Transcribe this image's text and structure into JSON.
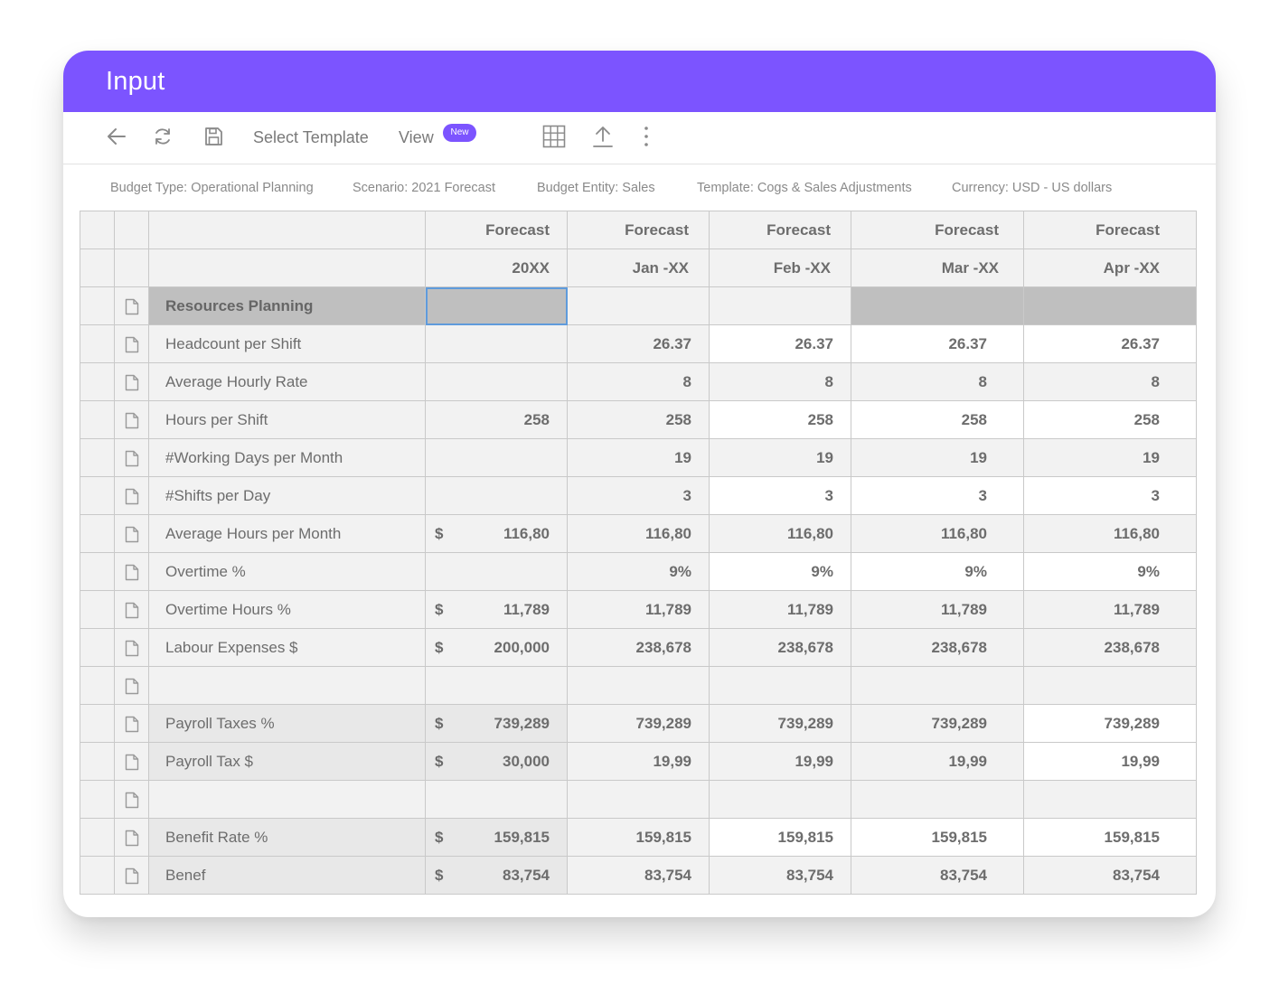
{
  "header": {
    "title": "Input"
  },
  "toolbar": {
    "back_icon": "arrow-left-icon",
    "refresh_icon": "refresh-icon",
    "save_icon": "floppy-disk-icon",
    "select_template_label": "Select Template",
    "view_label": "View",
    "view_badge": "New",
    "grid_icon": "grid-icon",
    "upload_icon": "upload-icon",
    "more_icon": "more-vertical-icon"
  },
  "info": {
    "budget_type": "Budget Type: Operational Planning",
    "scenario": "Scenario: 2021 Forecast",
    "budget_entity": "Budget Entity: Sales",
    "template": "Template: Cogs & Sales Adjustments",
    "currency": "Currency: USD - US dollars"
  },
  "colors": {
    "accent": "#7c54ff",
    "selection": "#5f9bdc"
  },
  "table": {
    "columns": [
      {
        "header1": "Forecast",
        "header2": "20XX"
      },
      {
        "header1": "Forecast",
        "header2": "Jan -XX"
      },
      {
        "header1": "Forecast",
        "header2": "Feb -XX"
      },
      {
        "header1": "Forecast",
        "header2": "Mar -XX"
      },
      {
        "header1": "Forecast",
        "header2": "Apr -XX"
      }
    ],
    "rows": [
      {
        "label": "Resources Planning",
        "currency": "",
        "values": [
          "",
          "",
          "",
          "",
          ""
        ]
      },
      {
        "label": "Headcount per Shift",
        "currency": "",
        "values": [
          "",
          "26.37",
          "26.37",
          "26.37",
          "26.37"
        ]
      },
      {
        "label": "Average Hourly Rate",
        "currency": "",
        "values": [
          "",
          "8",
          "8",
          "8",
          "8"
        ]
      },
      {
        "label": "Hours per Shift",
        "currency": "",
        "values": [
          "258",
          "258",
          "258",
          "258",
          "258"
        ]
      },
      {
        "label": "#Working Days per Month",
        "currency": "",
        "values": [
          "",
          "19",
          "19",
          "19",
          "19"
        ]
      },
      {
        "label": "#Shifts per Day",
        "currency": "",
        "values": [
          "",
          "3",
          "3",
          "3",
          "3"
        ]
      },
      {
        "label": "Average Hours per Month",
        "currency": "$",
        "values": [
          "116,80",
          "116,80",
          "116,80",
          "116,80",
          "116,80"
        ]
      },
      {
        "label": "Overtime %",
        "currency": "",
        "values": [
          "",
          "9%",
          "9%",
          "9%",
          "9%"
        ]
      },
      {
        "label": "Overtime Hours %",
        "currency": "$",
        "values": [
          "11,789",
          "11,789",
          "11,789",
          "11,789",
          "11,789"
        ]
      },
      {
        "label": "Labour Expenses $",
        "currency": "$",
        "values": [
          "200,000",
          "238,678",
          "238,678",
          "238,678",
          "238,678"
        ]
      },
      {
        "label": "",
        "currency": "",
        "values": [
          "",
          "",
          "",
          "",
          ""
        ]
      },
      {
        "label": "Payroll Taxes %",
        "currency": "$",
        "values": [
          "739,289",
          "739,289",
          "739,289",
          "739,289",
          "739,289"
        ]
      },
      {
        "label": "Payroll Tax $",
        "currency": "$",
        "values": [
          "30,000",
          "19,99",
          "19,99",
          "19,99",
          "19,99"
        ]
      },
      {
        "label": "",
        "currency": "",
        "values": [
          "",
          "",
          "",
          "",
          ""
        ]
      },
      {
        "label": "Benefit Rate %",
        "currency": "$",
        "values": [
          "159,815",
          "159,815",
          "159,815",
          "159,815",
          "159,815"
        ]
      },
      {
        "label": "Benef",
        "currency": "$",
        "values": [
          "83,754",
          "83,754",
          "83,754",
          "83,754",
          "83,754"
        ]
      }
    ]
  }
}
